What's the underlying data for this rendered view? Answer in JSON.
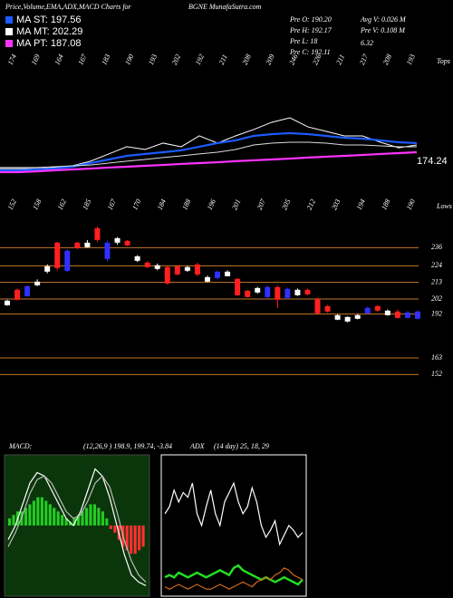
{
  "header": {
    "title": "Price,Volume,EMA,ADX,MACD Charts for",
    "site": "BGNE MunafaSutra.com",
    "legend": [
      {
        "label": "MA ST: 197.56",
        "color": "#1a5cff"
      },
      {
        "label": "MA MT: 202.29",
        "color": "#ffffff"
      },
      {
        "label": "MA PT: 187.08",
        "color": "#ff33ff"
      }
    ],
    "stats": [
      "Pre O: 190.20",
      "Pre H: 192.17",
      "Pre L: 18",
      "6.32",
      "Pre C: 192.11",
      "Avg V: 0.026 M",
      "Pre V: 0.108 M"
    ]
  },
  "chart_data": [
    {
      "type": "line",
      "tops_label": "Tops",
      "tops": [
        174,
        169,
        164,
        167,
        183,
        190,
        193,
        202,
        192,
        211,
        208,
        209,
        246,
        226,
        211,
        217,
        208,
        193
      ],
      "lows_label": "Lows",
      "lows": [
        152,
        158,
        162,
        185,
        167,
        170,
        184,
        188,
        196,
        201,
        207,
        205,
        212,
        203,
        194,
        188,
        190
      ],
      "price_label": "174.24",
      "ylim": [
        165,
        215
      ],
      "series": [
        {
          "name": "Price",
          "color": "#ffffff",
          "values": [
            169.7,
            169.7,
            169.7,
            170.3,
            171.3,
            174.0,
            178.2,
            182.4,
            180.8,
            184.5,
            182.4,
            188.7,
            184.5,
            188.7,
            192.4,
            196.6,
            199.2,
            193.9,
            191.3,
            188.7,
            188.7,
            185.0,
            181.8,
            183.4
          ]
        },
        {
          "name": "MA ST",
          "color": "#1a5cff",
          "values": [
            168.7,
            168.7,
            169.2,
            169.7,
            170.8,
            172.9,
            175.0,
            177.1,
            178.2,
            179.2,
            180.3,
            182.4,
            184.5,
            186.1,
            188.7,
            189.7,
            190.3,
            189.7,
            188.7,
            187.6,
            187.1,
            186.1,
            185.0,
            184.5
          ]
        },
        {
          "name": "MA MT",
          "color": "#dddddd",
          "values": [
            170.3,
            170.3,
            170.3,
            170.8,
            171.3,
            171.8,
            172.9,
            174.0,
            175.0,
            176.1,
            177.1,
            178.2,
            179.2,
            180.8,
            183.4,
            184.5,
            185.0,
            185.0,
            184.5,
            183.4,
            183.4,
            182.9,
            182.4,
            182.4
          ]
        },
        {
          "name": "MA PT",
          "color": "#ff33ff",
          "values": [
            167.6,
            167.6,
            168.1,
            168.7,
            169.2,
            169.7,
            170.3,
            170.8,
            171.3,
            171.8,
            172.4,
            172.9,
            173.4,
            174.0,
            174.5,
            175.0,
            175.5,
            176.1,
            176.6,
            177.1,
            177.6,
            178.2,
            178.7,
            179.2
          ]
        }
      ]
    },
    {
      "type": "candlestick",
      "ylim": [
        148,
        262
      ],
      "yticks": [
        236,
        224,
        213,
        202,
        192,
        163,
        152
      ],
      "grid_color": "#c8782a",
      "open": [
        198.2,
        207.8,
        204.2,
        211.4,
        220.4,
        239,
        221,
        239,
        236.6,
        248.6,
        228.8,
        239.6,
        240.2,
        227.6,
        225.8,
        222.2,
        222.8,
        223.4,
        221,
        224.6,
        213.8,
        216.2,
        217.4,
        215,
        207.2,
        206.6,
        203.6,
        209.6,
        203,
        204.8,
        207.8,
        201.8,
        197,
        188.6,
        187.4,
        189.2,
        192.8,
        197,
        191.6,
        193.4,
        189.8,
        189.2
      ],
      "close": [
        200.6,
        201.8,
        210.2,
        213.2,
        223.4,
        222.8,
        233.6,
        236,
        239,
        241.4,
        239,
        242,
        237.8,
        230,
        223.4,
        224,
        212.6,
        218.6,
        222.8,
        218.6,
        216.2,
        219.8,
        219.8,
        204.8,
        203.6,
        209,
        209.6,
        201.8,
        208.4,
        207.8,
        205.4,
        192.8,
        194,
        191,
        189.8,
        191,
        195.8,
        194.6,
        194,
        189.8,
        192.8,
        193.4
      ],
      "high": [
        201.5,
        209,
        211,
        215,
        225,
        240,
        235,
        240,
        241,
        250,
        240.5,
        243,
        241,
        231,
        227,
        225.5,
        224,
        224.5,
        224,
        226,
        217.5,
        221,
        221,
        216,
        208,
        210,
        211,
        211,
        209.5,
        209,
        209,
        203,
        198,
        192,
        190.5,
        192,
        197,
        198,
        195,
        195,
        194,
        194.5
      ],
      "low": [
        197.5,
        201,
        203.5,
        210.5,
        219,
        221,
        220,
        235,
        236,
        240,
        227,
        238,
        237,
        226.5,
        222.5,
        221,
        211.5,
        217.5,
        220,
        217,
        213,
        215,
        217,
        204,
        203,
        205.5,
        202.5,
        196,
        202,
        204,
        204.5,
        191.5,
        193,
        188,
        186.5,
        188.5,
        192,
        193.5,
        191,
        189,
        189,
        188.5
      ],
      "colors": [
        "#ffffff",
        "#ff2020",
        "#3030ff",
        "#ffffff",
        "#ffffff",
        "#ff2020",
        "#3030ff",
        "#ff2020",
        "#ffffff",
        "#ff2020",
        "#3030ff",
        "#ffffff",
        "#ff2020",
        "#ffffff",
        "#ff2020",
        "#ffffff",
        "#ff2020",
        "#ff2020",
        "#ffffff",
        "#ff2020",
        "#ffffff",
        "#3030ff",
        "#ffffff",
        "#ff2020",
        "#ff2020",
        "#ffffff",
        "#3030ff",
        "#ff2020",
        "#3030ff",
        "#ffffff",
        "#ff2020",
        "#ff2020",
        "#ff2020",
        "#ffffff",
        "#ffffff",
        "#ffffff",
        "#3030ff",
        "#ff2020",
        "#ffffff",
        "#ff2020",
        "#3030ff",
        "#3030ff"
      ]
    },
    {
      "type": "macd",
      "title": "MACD:",
      "params": "(12,26,9 ) 198.9, 199.74, -3.84",
      "ylim": [
        -10,
        10
      ],
      "background": "#0b360b",
      "histogram": [
        1,
        1.5,
        2,
        2,
        2.5,
        3,
        3.5,
        4,
        4,
        3.5,
        3,
        2.5,
        2,
        1.5,
        1,
        0.5,
        1,
        1.5,
        2,
        2.5,
        3,
        3,
        2.5,
        2,
        1,
        -0.5,
        -1,
        -2,
        -3,
        -3.5,
        -4,
        -4,
        -3.5,
        -3
      ],
      "pos_color": "#22cc22",
      "neg_color": "#ff3030",
      "series": [
        {
          "name": "MACD",
          "color": "#ffffff",
          "values": [
            -2,
            0,
            3,
            6,
            7.5,
            7,
            5,
            3,
            1,
            0,
            2,
            5,
            8,
            7,
            4,
            0,
            -4,
            -7,
            -8,
            -8.5
          ]
        },
        {
          "name": "Signal",
          "color": "#bbbbbb",
          "values": [
            -3,
            -1,
            1.5,
            4.5,
            6.5,
            7,
            6,
            4,
            2,
            1,
            1.5,
            3.5,
            6,
            7,
            5.5,
            2,
            -2,
            -5,
            -7,
            -8
          ]
        }
      ]
    },
    {
      "type": "adx",
      "title": "ADX",
      "params": "(14 day) 25, 18, 29",
      "ylim": [
        0,
        60
      ],
      "series": [
        {
          "name": "+DI",
          "color": "#ffffff",
          "values": [
            35,
            38,
            45,
            40,
            44,
            42,
            48,
            35,
            30,
            38,
            45,
            35,
            30,
            40,
            44,
            48,
            40,
            35,
            38,
            46,
            40,
            30,
            25,
            28,
            32,
            22,
            26,
            30,
            28,
            25,
            27
          ]
        },
        {
          "name": "ADX",
          "color": "#22dd22",
          "values": [
            8,
            9,
            8,
            10,
            9,
            8,
            9,
            10,
            9,
            8,
            9,
            10,
            11,
            10,
            9,
            12,
            13,
            11,
            10,
            9,
            8,
            7,
            8,
            7,
            6,
            7,
            8,
            7,
            6,
            5,
            7
          ]
        },
        {
          "name": "-DI",
          "color": "#d2691e",
          "values": [
            4,
            3,
            4,
            5,
            4,
            3,
            4,
            5,
            4,
            3,
            3,
            4,
            5,
            4,
            3,
            4,
            5,
            6,
            5,
            4,
            6,
            7,
            8,
            7,
            9,
            10,
            12,
            11,
            9,
            8,
            7
          ]
        }
      ]
    }
  ]
}
